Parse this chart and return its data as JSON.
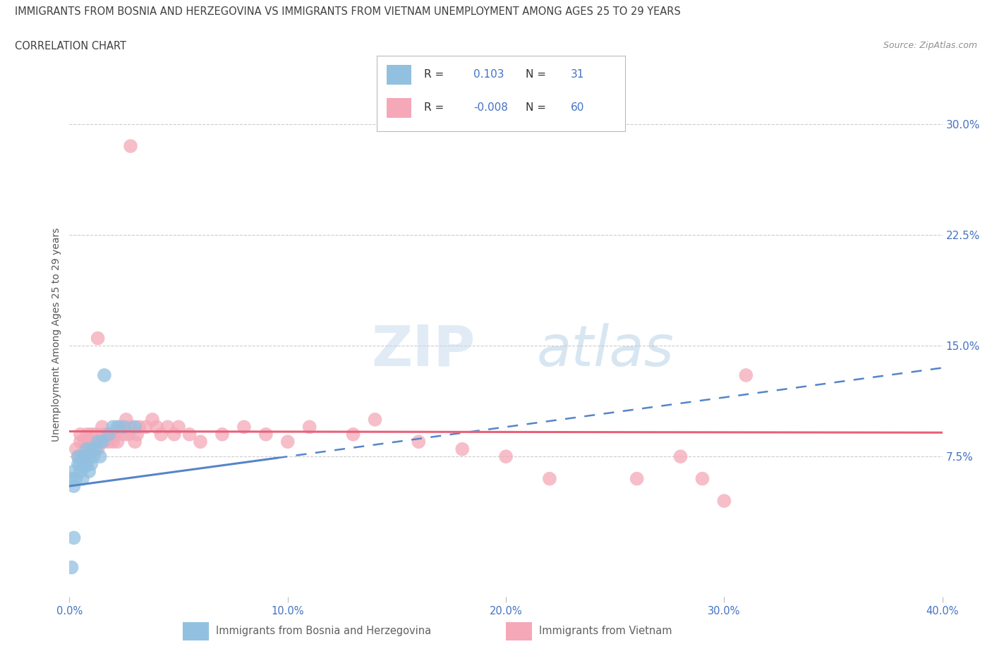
{
  "title_line1": "IMMIGRANTS FROM BOSNIA AND HERZEGOVINA VS IMMIGRANTS FROM VIETNAM UNEMPLOYMENT AMONG AGES 25 TO 29 YEARS",
  "title_line2": "CORRELATION CHART",
  "source": "Source: ZipAtlas.com",
  "ylabel": "Unemployment Among Ages 25 to 29 years",
  "xlim": [
    0.0,
    0.4
  ],
  "ylim": [
    -0.02,
    0.335
  ],
  "xticks": [
    0.0,
    0.1,
    0.2,
    0.3,
    0.4
  ],
  "xticklabels": [
    "0.0%",
    "10.0%",
    "20.0%",
    "30.0%",
    "40.0%"
  ],
  "yticks": [
    0.075,
    0.15,
    0.225,
    0.3
  ],
  "yticklabels": [
    "7.5%",
    "15.0%",
    "22.5%",
    "30.0%"
  ],
  "bosnia_color": "#92c0e0",
  "vietnam_color": "#f4a8b8",
  "bosnia_line_color": "#5585c8",
  "vietnam_line_color": "#e8607a",
  "legend_r_bosnia": "0.103",
  "legend_n_bosnia": "31",
  "legend_r_vietnam": "-0.008",
  "legend_n_vietnam": "60",
  "label_bosnia": "Immigrants from Bosnia and Herzegovina",
  "label_vietnam": "Immigrants from Vietnam",
  "bosnia_scatter_x": [
    0.001,
    0.002,
    0.002,
    0.003,
    0.004,
    0.004,
    0.005,
    0.005,
    0.006,
    0.006,
    0.007,
    0.007,
    0.008,
    0.008,
    0.009,
    0.009,
    0.01,
    0.01,
    0.011,
    0.012,
    0.013,
    0.014,
    0.015,
    0.016,
    0.018,
    0.02,
    0.022,
    0.025,
    0.03,
    0.002,
    0.001
  ],
  "bosnia_scatter_y": [
    0.06,
    0.055,
    0.065,
    0.06,
    0.07,
    0.075,
    0.065,
    0.07,
    0.06,
    0.075,
    0.068,
    0.075,
    0.07,
    0.08,
    0.065,
    0.075,
    0.07,
    0.08,
    0.075,
    0.08,
    0.085,
    0.075,
    0.085,
    0.13,
    0.09,
    0.095,
    0.095,
    0.095,
    0.095,
    0.02,
    0.0
  ],
  "vietnam_scatter_x": [
    0.003,
    0.004,
    0.005,
    0.005,
    0.006,
    0.007,
    0.007,
    0.008,
    0.008,
    0.009,
    0.01,
    0.01,
    0.011,
    0.012,
    0.013,
    0.014,
    0.015,
    0.015,
    0.016,
    0.017,
    0.018,
    0.019,
    0.02,
    0.021,
    0.022,
    0.023,
    0.025,
    0.026,
    0.027,
    0.028,
    0.03,
    0.031,
    0.032,
    0.035,
    0.038,
    0.04,
    0.042,
    0.045,
    0.048,
    0.05,
    0.055,
    0.06,
    0.07,
    0.08,
    0.09,
    0.1,
    0.11,
    0.13,
    0.14,
    0.16,
    0.18,
    0.2,
    0.22,
    0.26,
    0.28,
    0.29,
    0.3,
    0.31,
    0.013,
    0.028
  ],
  "vietnam_scatter_y": [
    0.08,
    0.075,
    0.085,
    0.09,
    0.075,
    0.08,
    0.085,
    0.09,
    0.075,
    0.085,
    0.08,
    0.09,
    0.085,
    0.09,
    0.08,
    0.085,
    0.09,
    0.095,
    0.085,
    0.09,
    0.085,
    0.09,
    0.085,
    0.09,
    0.085,
    0.095,
    0.09,
    0.1,
    0.09,
    0.095,
    0.085,
    0.09,
    0.095,
    0.095,
    0.1,
    0.095,
    0.09,
    0.095,
    0.09,
    0.095,
    0.09,
    0.085,
    0.09,
    0.095,
    0.09,
    0.085,
    0.095,
    0.09,
    0.1,
    0.085,
    0.08,
    0.075,
    0.06,
    0.06,
    0.075,
    0.06,
    0.045,
    0.13,
    0.155,
    0.285
  ],
  "watermark_zip": "ZIP",
  "watermark_atlas": "atlas",
  "background_color": "#ffffff",
  "grid_color": "#cccccc",
  "tick_color": "#4472c4",
  "title_color": "#404040",
  "source_color": "#909090"
}
